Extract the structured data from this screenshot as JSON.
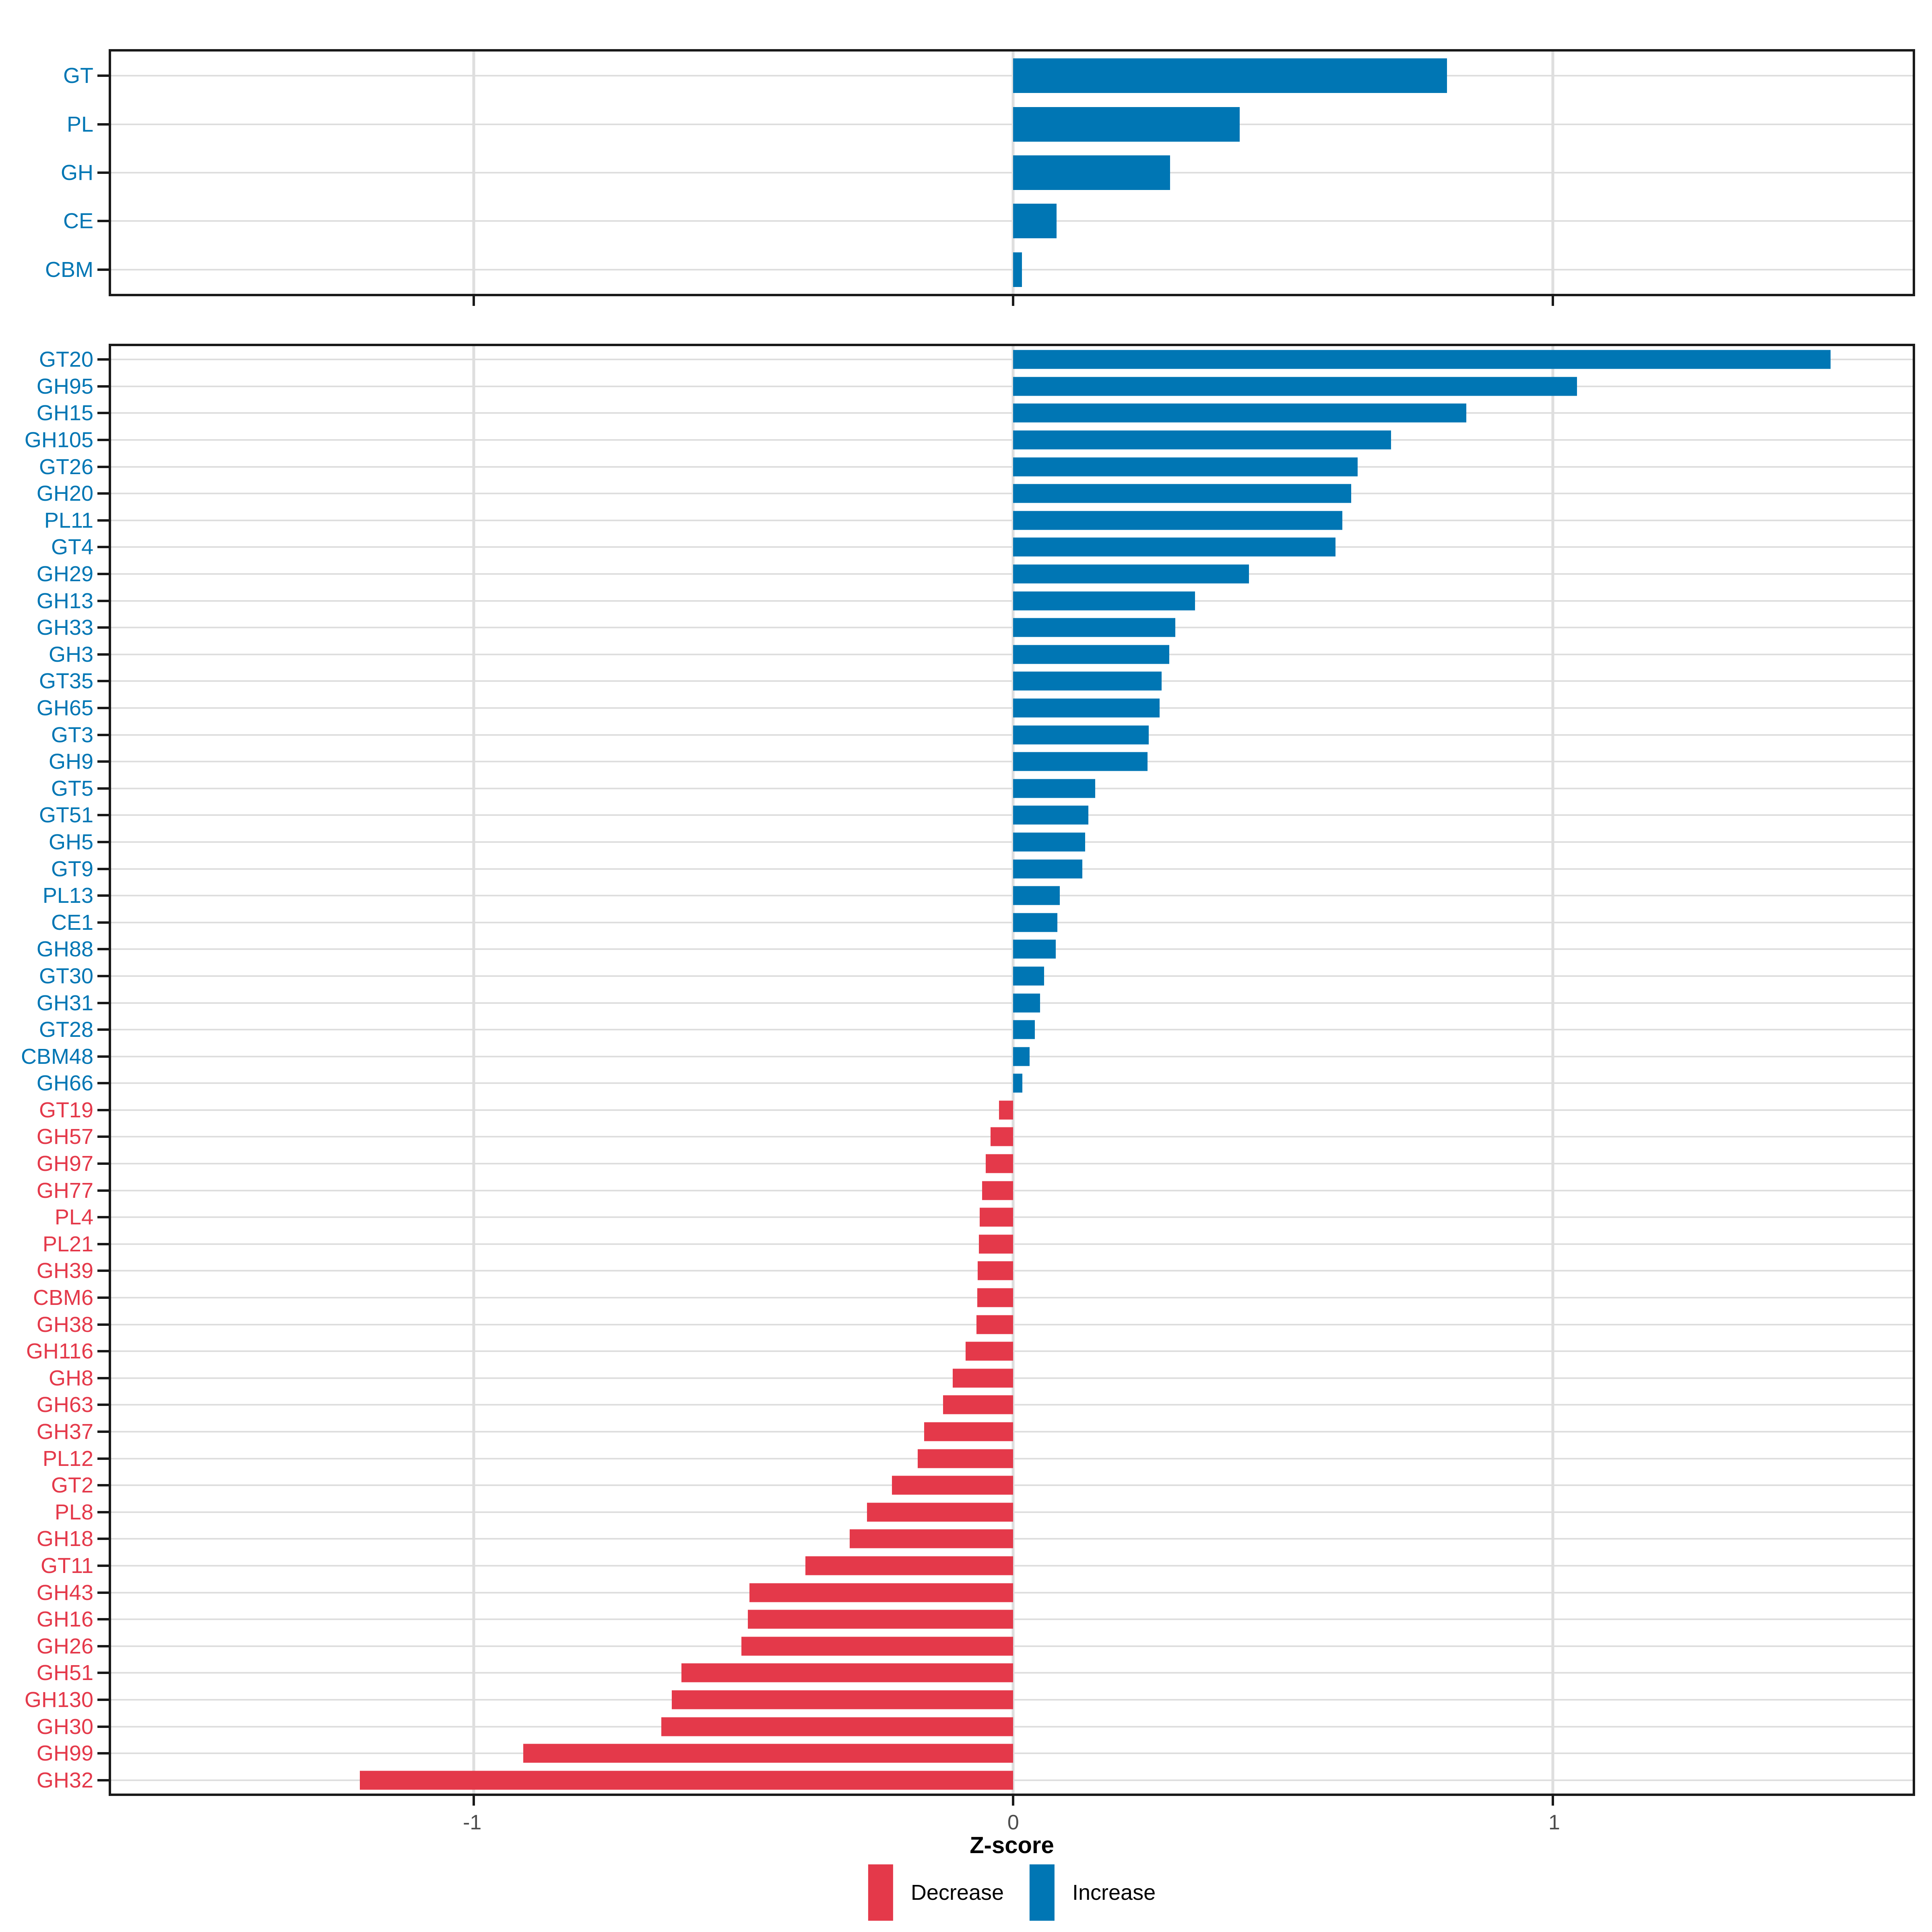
{
  "axis": {
    "xlabel": "Z-score",
    "xlim": [
      -1.672,
      1.667
    ],
    "ticks": [
      {
        "label": "-1",
        "value": -1
      },
      {
        "label": "0",
        "value": 0
      },
      {
        "label": "1",
        "value": 1
      }
    ]
  },
  "legend": {
    "items": [
      {
        "label": "Decrease",
        "color": "#E4394A"
      },
      {
        "label": "Increase",
        "color": "#0076B4"
      }
    ]
  },
  "colors": {
    "increase": "#0076B4",
    "decrease": "#E4394A",
    "grid": "#DEDEDE",
    "panel_border": "#1A1A1A",
    "tick_text": "#4D4D4D"
  },
  "chart_data": [
    {
      "id": "cazyme-class-panel",
      "type": "bar",
      "orientation": "horizontal",
      "title": "",
      "xlabel": "Z-score",
      "xlim": [
        -1.672,
        1.667
      ],
      "grid": true,
      "legend_position": "bottom",
      "categories": [
        "GT",
        "PL",
        "GH",
        "CE",
        "CBM"
      ],
      "values": [
        0.804,
        0.42,
        0.291,
        0.08,
        0.016
      ]
    },
    {
      "id": "cazyme-family-panel",
      "type": "bar",
      "orientation": "horizontal",
      "title": "",
      "xlabel": "Z-score",
      "xlim": [
        -1.672,
        1.667
      ],
      "grid": true,
      "legend_position": "bottom",
      "categories": [
        "GT20",
        "GH95",
        "GH15",
        "GH105",
        "GT26",
        "GH20",
        "PL11",
        "GT4",
        "GH29",
        "GH13",
        "GH33",
        "GH3",
        "GT35",
        "GH65",
        "GT3",
        "GH9",
        "GT5",
        "GT51",
        "GH5",
        "GT9",
        "PL13",
        "CE1",
        "GH88",
        "GT30",
        "GH31",
        "GT28",
        "CBM48",
        "GH66",
        "GT19",
        "GH57",
        "GH97",
        "GH77",
        "PL4",
        "PL21",
        "GH39",
        "CBM6",
        "GH38",
        "GH116",
        "GH8",
        "GH63",
        "GH37",
        "PL12",
        "GT2",
        "PL8",
        "GH18",
        "GT11",
        "GH43",
        "GH16",
        "GH26",
        "GH51",
        "GH130",
        "GH30",
        "GH99",
        "GH32"
      ],
      "values": [
        1.515,
        1.045,
        0.84,
        0.7,
        0.638,
        0.626,
        0.61,
        0.597,
        0.437,
        0.337,
        0.3,
        0.289,
        0.275,
        0.271,
        0.251,
        0.249,
        0.152,
        0.139,
        0.133,
        0.128,
        0.086,
        0.082,
        0.079,
        0.057,
        0.05,
        0.04,
        0.03,
        0.017,
        -0.026,
        -0.042,
        -0.051,
        -0.058,
        -0.062,
        -0.064,
        -0.066,
        -0.067,
        -0.068,
        -0.088,
        -0.112,
        -0.13,
        -0.165,
        -0.177,
        -0.225,
        -0.271,
        -0.303,
        -0.385,
        -0.489,
        -0.492,
        -0.504,
        -0.615,
        -0.633,
        -0.652,
        -0.908,
        -1.211
      ]
    }
  ]
}
